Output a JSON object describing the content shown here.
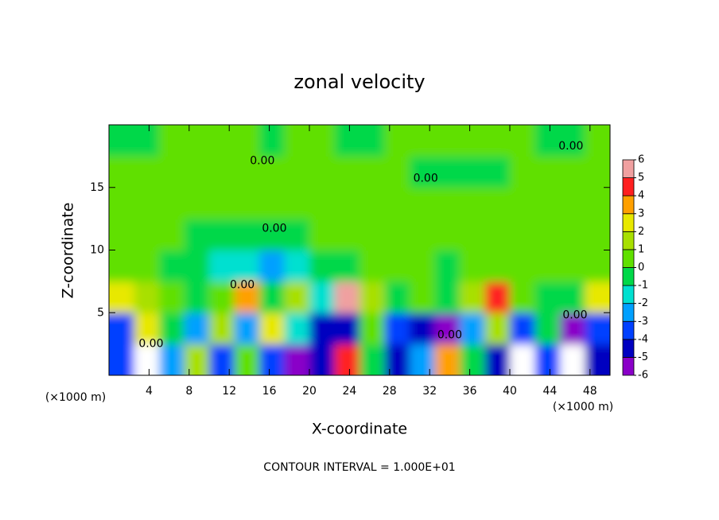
{
  "chart_data": {
    "type": "contour",
    "title": "zonal velocity",
    "x_label": "X-coordinate",
    "y_label": "Z-coordinate",
    "y_unit": "(×1000 m)",
    "x_unit": "(×1000 m)",
    "footer": "CONTOUR INTERVAL = 1.000E+01",
    "xlim": [
      0,
      50
    ],
    "ylim": [
      0,
      20
    ],
    "xticks": [
      4,
      8,
      12,
      16,
      20,
      24,
      28,
      32,
      36,
      40,
      44,
      48
    ],
    "yticks": [
      5,
      10,
      15
    ],
    "x": [
      1.25,
      3.75,
      6.25,
      8.75,
      11.25,
      13.75,
      16.25,
      18.75,
      21.25,
      23.75,
      26.25,
      28.75,
      31.25,
      33.75,
      36.25,
      38.75,
      41.25,
      43.75,
      46.25,
      48.75
    ],
    "z": [
      1.25,
      3.75,
      6.25,
      8.75,
      11.25,
      13.75,
      16.25,
      18.75
    ],
    "values": [
      [
        -3,
        -7,
        -2,
        2,
        -3,
        1,
        -3,
        -5,
        -4,
        5,
        0,
        -4,
        -2,
        4,
        0,
        -4,
        -7,
        -3,
        -7,
        -4
      ],
      [
        -3,
        3,
        0,
        -2,
        2,
        -2,
        3,
        -1,
        -4,
        -4,
        1,
        -3,
        -4,
        -6,
        -2,
        2,
        -3,
        0,
        -5,
        -3
      ],
      [
        3,
        2,
        1,
        0,
        1,
        4,
        0,
        2,
        -1,
        6,
        2,
        0,
        1,
        0,
        2,
        5,
        1,
        0,
        0,
        3
      ],
      [
        0.5,
        0.5,
        0,
        0,
        -1,
        -1.5,
        -2,
        -1,
        0,
        0,
        0.5,
        0.5,
        0.5,
        0,
        0.5,
        0.5,
        0.5,
        0.5,
        0.5,
        0.5
      ],
      [
        0.5,
        0.5,
        0.5,
        0,
        0,
        -0.5,
        -0.5,
        0,
        0.5,
        0.5,
        1,
        0.5,
        0.5,
        0.5,
        0.5,
        0.5,
        0.5,
        0.5,
        0.5,
        0.5
      ],
      [
        0.5,
        0.5,
        1,
        0.5,
        0.5,
        0.5,
        0.5,
        0.5,
        0.5,
        0.5,
        0.5,
        0.5,
        0.5,
        0.5,
        0.5,
        0.5,
        0.5,
        0.5,
        1,
        0.5
      ],
      [
        0.5,
        0.5,
        0.5,
        0.5,
        0.5,
        0.5,
        0.5,
        0.5,
        0.5,
        0.5,
        0.5,
        0.5,
        0,
        -0.5,
        0,
        0,
        0.5,
        0.5,
        0.5,
        0.5
      ],
      [
        -0.5,
        0,
        0.5,
        0.5,
        0.5,
        0.5,
        0,
        0.5,
        0.5,
        0,
        0,
        0.5,
        0.5,
        0.5,
        0.5,
        0.5,
        0.5,
        0,
        0,
        0.5
      ]
    ],
    "colorbar_ticks": [
      -6,
      -5,
      -4,
      -3,
      -2,
      -1,
      0,
      1,
      2,
      3,
      4,
      5,
      6
    ],
    "colors": [
      "#8a00c8",
      "#0000c0",
      "#0040ff",
      "#00a0ff",
      "#00e0d0",
      "#00d848",
      "#60e000",
      "#a8e000",
      "#e8e800",
      "#ffa000",
      "#ff2020",
      "#f0a0a0"
    ],
    "out_of_range_color": "#ffffff",
    "contour_labels": [
      {
        "text": "0.00",
        "x": 4.2,
        "z": 2.5
      },
      {
        "text": "0.00",
        "x": 13.3,
        "z": 7.2
      },
      {
        "text": "0.00",
        "x": 15.3,
        "z": 17.1
      },
      {
        "text": "0.00",
        "x": 16.5,
        "z": 11.7
      },
      {
        "text": "0.00",
        "x": 31.6,
        "z": 15.7
      },
      {
        "text": "0.00",
        "x": 46.1,
        "z": 18.3
      },
      {
        "text": "0.00",
        "x": 34.0,
        "z": 3.2
      },
      {
        "text": "0.00",
        "x": 46.5,
        "z": 4.8
      }
    ]
  }
}
